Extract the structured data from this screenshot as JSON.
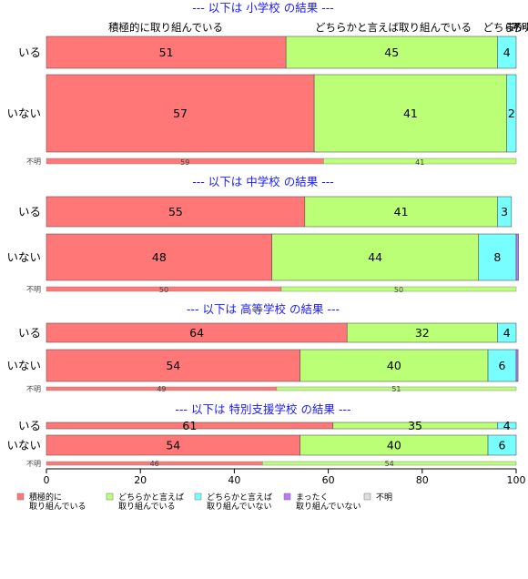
{
  "chart_data": {
    "type": "bar",
    "orientation": "horizontal",
    "stacked": true,
    "xlim": [
      0,
      100
    ],
    "xticks": [
      0,
      20,
      40,
      60,
      80,
      100
    ],
    "colors": [
      "#ff7777",
      "#bbff77",
      "#77ffff",
      "#bb77ff",
      "#dddddd"
    ],
    "legend": {
      "position": "bottom-left",
      "items": [
        {
          "label": [
            "積極的に",
            "取り組んでいる"
          ],
          "color": "#ff7777"
        },
        {
          "label": [
            "どちらかと言えば",
            "取り組んでいる"
          ],
          "color": "#bbff77"
        },
        {
          "label": [
            "どちらかと言えば",
            "取り組んでいない"
          ],
          "color": "#77ffff"
        },
        {
          "label": [
            "まったく",
            "取り組んでいない"
          ],
          "color": "#bb77ff"
        },
        {
          "label": [
            "不明"
          ],
          "color": "#dddddd"
        }
      ]
    },
    "top_labels": [
      "積極的に取り組んでいる",
      "どちらかと言えば取り組んでいる",
      "どちらかと言",
      "不明"
    ],
    "top_label_fragments": [
      "ま",
      "ち"
    ],
    "sections": [
      {
        "title": "--- 以下は 小学校 の結果 ---",
        "rows": [
          {
            "label": "いる",
            "values": [
              51,
              45,
              4,
              0,
              0
            ],
            "shown": [
              "51",
              "45",
              "4",
              "",
              ""
            ]
          },
          {
            "label": "いない",
            "values": [
              57,
              41,
              2,
              0,
              0
            ],
            "shown": [
              "57",
              "41",
              "2",
              "",
              ""
            ]
          },
          {
            "label": "不明",
            "values": [
              59,
              41,
              0,
              0,
              0
            ],
            "shown": [
              "59",
              "41",
              "",
              "",
              ""
            ]
          }
        ]
      },
      {
        "title": "--- 以下は 中学校 の結果 ---",
        "rows": [
          {
            "label": "いる",
            "values": [
              55,
              41,
              3,
              0,
              0
            ],
            "shown": [
              "55",
              "41",
              "3",
              "",
              ""
            ]
          },
          {
            "label": "いない",
            "values": [
              48,
              44,
              8,
              0.5,
              0
            ],
            "shown": [
              "48",
              "44",
              "8",
              "",
              ""
            ]
          },
          {
            "label": "不明",
            "values": [
              50,
              50,
              0,
              0,
              0
            ],
            "shown": [
              "50",
              "50",
              "",
              "",
              ""
            ]
          }
        ]
      },
      {
        "title": "--- 以下は 高等学校 の結果 ---",
        "rows": [
          {
            "label": "いる",
            "values": [
              64,
              32,
              4,
              0,
              0
            ],
            "shown": [
              "64",
              "32",
              "4",
              "",
              ""
            ]
          },
          {
            "label": "いない",
            "values": [
              54,
              40,
              6,
              0.4,
              0
            ],
            "shown": [
              "54",
              "40",
              "6",
              "",
              ""
            ]
          },
          {
            "label": "不明",
            "values": [
              49,
              51,
              0,
              0,
              0
            ],
            "shown": [
              "49",
              "51",
              "",
              "",
              ""
            ]
          }
        ]
      },
      {
        "title": "--- 以下は 特別支援学校 の結果 ---",
        "rows": [
          {
            "label": "いる",
            "values": [
              61,
              35,
              4,
              0,
              0
            ],
            "shown": [
              "61",
              "35",
              "4",
              "",
              ""
            ]
          },
          {
            "label": "いない",
            "values": [
              54,
              40,
              6,
              0,
              0
            ],
            "shown": [
              "54",
              "40",
              "6",
              "",
              ""
            ]
          },
          {
            "label": "不明",
            "values": [
              46,
              54,
              0,
              0,
              0
            ],
            "shown": [
              "46",
              "54",
              "",
              "",
              ""
            ]
          }
        ]
      }
    ]
  }
}
